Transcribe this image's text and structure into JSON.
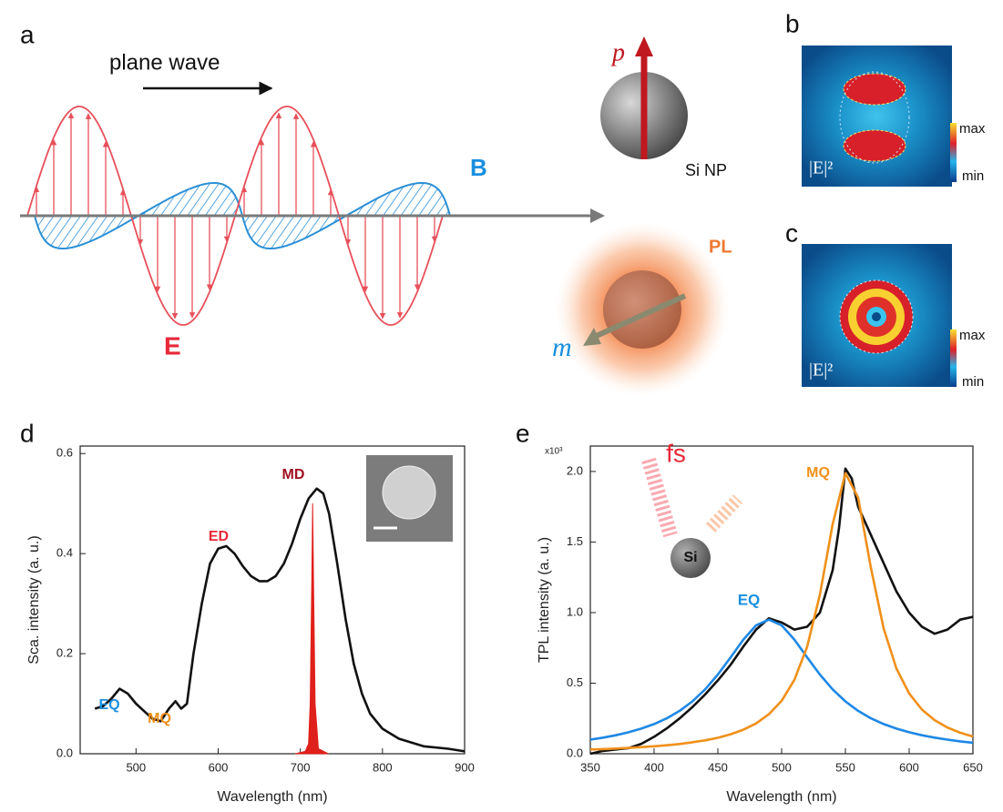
{
  "figure": {
    "panel_labels": [
      "a",
      "b",
      "c",
      "d",
      "e"
    ],
    "wave": {
      "direction_label": "plane wave",
      "electric_field": "E",
      "magnetic_field": "B"
    },
    "particle": {
      "electric_dipole": "p",
      "name": "Si NP",
      "emission": "PL",
      "magnetic_dipole": "m"
    },
    "field_maps": [
      {
        "quantity": "|E|²",
        "max_label": "max",
        "min_label": "min"
      },
      {
        "quantity": "|E|²",
        "max_label": "max",
        "min_label": "min"
      }
    ]
  },
  "chart_data": [
    {
      "type": "line",
      "xlabel": "Wavelength (nm)",
      "ylabel": "Sca. intensity (a. u.)",
      "xlim": [
        432,
        900
      ],
      "xticks": [
        500,
        600,
        700,
        800,
        900
      ],
      "ylim": [
        0,
        0.615
      ],
      "yticks": [
        {
          "value": 0,
          "label": "0.0"
        },
        0.2,
        0.4,
        0.6
      ],
      "annotations": [
        {
          "text": "EQ",
          "color": "#1a8fe0"
        },
        {
          "text": "MQ",
          "color": "#f0901a"
        },
        {
          "text": "ED",
          "color": "#e8283a"
        },
        {
          "text": "MD",
          "color": "#a01020"
        }
      ],
      "series": [
        {
          "color": "#111111",
          "x": [
            450,
            460,
            470,
            480,
            490,
            500,
            510,
            520,
            530,
            540,
            548,
            555,
            562,
            570,
            580,
            590,
            600,
            610,
            620,
            630,
            640,
            650,
            660,
            670,
            680,
            690,
            700,
            710,
            720,
            728,
            735,
            745,
            755,
            765,
            775,
            785,
            800,
            820,
            850,
            880,
            900
          ],
          "values": [
            0.09,
            0.095,
            0.11,
            0.13,
            0.12,
            0.1,
            0.085,
            0.07,
            0.065,
            0.09,
            0.105,
            0.09,
            0.1,
            0.2,
            0.3,
            0.38,
            0.41,
            0.415,
            0.4,
            0.375,
            0.355,
            0.345,
            0.345,
            0.355,
            0.38,
            0.42,
            0.47,
            0.51,
            0.53,
            0.52,
            0.48,
            0.38,
            0.27,
            0.18,
            0.12,
            0.08,
            0.05,
            0.03,
            0.015,
            0.01,
            0.005
          ]
        },
        {
          "color": "#e0201b",
          "fill": true,
          "x": [
            694,
            706,
            710,
            712,
            714,
            715,
            716,
            718,
            722,
            734
          ],
          "values": [
            0,
            0.005,
            0.02,
            0.1,
            0.35,
            0.5,
            0.35,
            0.1,
            0.01,
            0
          ]
        }
      ]
    },
    {
      "type": "line",
      "xlabel": "Wavelength (nm)",
      "ylabel": "TPL intensity (a. u.)",
      "y_multiplier": "x10³",
      "xlim": [
        350,
        650
      ],
      "xticks": [
        350,
        400,
        450,
        500,
        550,
        600,
        650
      ],
      "ylim": [
        0,
        2.18
      ],
      "yticks": [
        {
          "value": 0,
          "label": "0.0"
        },
        0.5,
        {
          "value": 1,
          "label": "1.0"
        },
        1.5,
        {
          "value": 2,
          "label": "2.0"
        }
      ],
      "annotations": [
        {
          "text": "MQ",
          "color": "#f0901a"
        },
        {
          "text": "EQ",
          "color": "#1a8fe0"
        },
        {
          "text": "fs",
          "color": "#e8283a"
        },
        {
          "text": "Si",
          "color": "#111111"
        }
      ],
      "series": [
        {
          "color": "#111111",
          "x": [
            350,
            360,
            370,
            380,
            390,
            400,
            410,
            420,
            430,
            440,
            450,
            460,
            470,
            480,
            490,
            500,
            510,
            520,
            530,
            540,
            545,
            550,
            555,
            560,
            570,
            580,
            590,
            600,
            610,
            620,
            630,
            640,
            650
          ],
          "values": [
            0.0,
            0.02,
            0.03,
            0.04,
            0.07,
            0.12,
            0.18,
            0.25,
            0.33,
            0.42,
            0.52,
            0.63,
            0.76,
            0.88,
            0.96,
            0.93,
            0.88,
            0.9,
            1.0,
            1.3,
            1.6,
            2.02,
            1.95,
            1.75,
            1.55,
            1.35,
            1.15,
            1.0,
            0.9,
            0.85,
            0.88,
            0.95,
            0.97
          ]
        },
        {
          "color": "#1e88e5",
          "x": [
            350,
            360,
            370,
            380,
            390,
            400,
            410,
            420,
            430,
            440,
            450,
            460,
            470,
            480,
            490,
            500,
            510,
            520,
            530,
            540,
            550,
            560,
            570,
            580,
            590,
            600,
            610,
            620,
            630,
            640,
            650
          ],
          "values": [
            0.1,
            0.114,
            0.131,
            0.152,
            0.178,
            0.21,
            0.251,
            0.304,
            0.371,
            0.456,
            0.561,
            0.683,
            0.809,
            0.91,
            0.95,
            0.91,
            0.809,
            0.683,
            0.561,
            0.456,
            0.371,
            0.304,
            0.251,
            0.21,
            0.178,
            0.152,
            0.131,
            0.114,
            0.1,
            0.088,
            0.078
          ]
        },
        {
          "color": "#f0901a",
          "x": [
            350,
            360,
            370,
            380,
            390,
            400,
            410,
            420,
            430,
            440,
            450,
            460,
            470,
            480,
            490,
            500,
            510,
            520,
            530,
            540,
            550,
            560,
            570,
            580,
            590,
            600,
            610,
            620,
            630,
            640,
            650
          ],
          "values": [
            0.03,
            0.033,
            0.037,
            0.041,
            0.047,
            0.053,
            0.06,
            0.069,
            0.081,
            0.095,
            0.113,
            0.138,
            0.17,
            0.215,
            0.28,
            0.375,
            0.524,
            0.758,
            1.127,
            1.626,
            1.987,
            1.814,
            1.317,
            0.887,
            0.604,
            0.427,
            0.313,
            0.238,
            0.186,
            0.149,
            0.122
          ]
        }
      ]
    }
  ]
}
